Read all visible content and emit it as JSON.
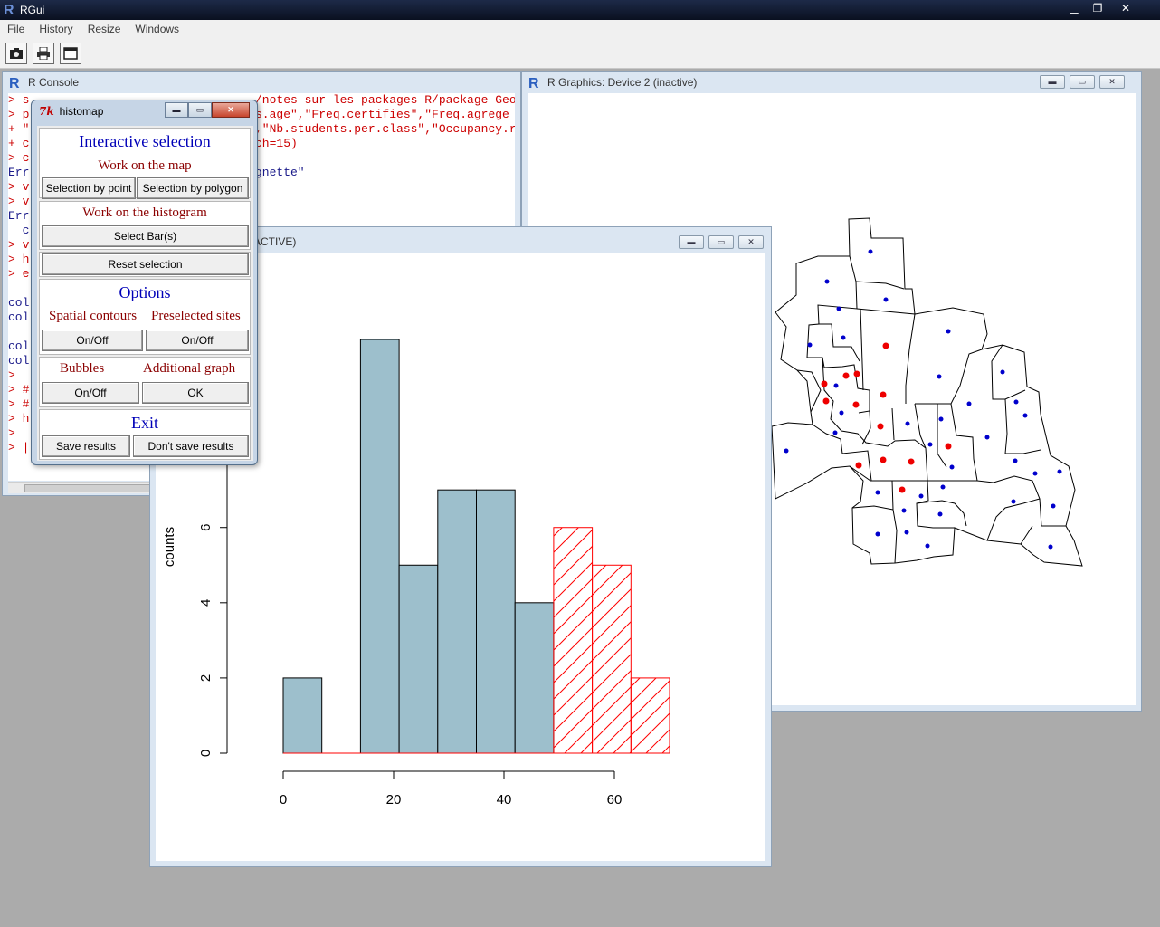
{
  "app": {
    "title": "RGui",
    "menus": [
      "File",
      "History",
      "Resize",
      "Windows"
    ]
  },
  "console": {
    "title": "R Console",
    "lines": [
      {
        "text": "> s",
        "color": "red"
      },
      {
        "text": "> p",
        "color": "red"
      },
      {
        "text": "+ \"",
        "color": "red"
      },
      {
        "text": "+ c",
        "color": "red"
      },
      {
        "text": "> c",
        "color": "red"
      },
      {
        "text": "Err",
        "color": "blue"
      },
      {
        "text": "> v",
        "color": "red"
      },
      {
        "text": "> v",
        "color": "red"
      },
      {
        "text": "Err",
        "color": "blue"
      },
      {
        "text": "  c",
        "color": "blue"
      },
      {
        "text": "> v",
        "color": "red"
      },
      {
        "text": "> h",
        "color": "red"
      },
      {
        "text": "> e",
        "color": "red"
      },
      {
        "text": "",
        "color": "blue"
      },
      {
        "text": "col",
        "color": "blue"
      },
      {
        "text": "col",
        "color": "blue"
      },
      {
        "text": "",
        "color": "blue"
      },
      {
        "text": "col",
        "color": "blue"
      },
      {
        "text": "col",
        "color": "blue"
      },
      {
        "text": ">",
        "color": "red"
      },
      {
        "text": "> #",
        "color": "red"
      },
      {
        "text": "> #",
        "color": "red"
      },
      {
        "text": "> h",
        "color": "red"
      },
      {
        "text": ">",
        "color": "red"
      },
      {
        "text": "> |",
        "color": "red"
      }
    ],
    "right_lines": [
      {
        "row": 0,
        "text": "/notes sur les packages R/package Geo"
      },
      {
        "row": 1,
        "text": "s.age\",\"Freq.certifies\",\"Freq.agrege"
      },
      {
        "row": 2,
        "text": ",\"Nb.students.per.class\",\"Occupancy.r"
      },
      {
        "row": 3,
        "text": "ch=15)"
      },
      {
        "row": 5,
        "text": "gnette\"",
        "color": "blue"
      }
    ]
  },
  "device2": {
    "title": "R Graphics: Device 2 (inactive)"
  },
  "device3": {
    "title": "e 3 (ACTIVE)"
  },
  "histomap": {
    "title": "histomap",
    "interactive_selection": "Interactive selection",
    "work_on_map": "Work on the map",
    "selection_by_point": "Selection by point",
    "selection_by_polygon": "Selection by polygon",
    "work_on_histogram": "Work on the histogram",
    "select_bars": "Select Bar(s)",
    "reset_selection": "Reset selection",
    "options": "Options",
    "spatial_contours": "Spatial contours",
    "preselected_sites": "Preselected sites",
    "onoff_1": "On/Off",
    "onoff_2": "On/Off",
    "bubbles": "Bubbles",
    "additional_graph": "Additional graph",
    "onoff_3": "On/Off",
    "ok": "OK",
    "exit": "Exit",
    "save_results": "Save results",
    "dont_save_results": "Don't save results"
  },
  "chart_data": {
    "type": "bar",
    "ylabel": "counts",
    "xlim": [
      0,
      70
    ],
    "ylim": [
      0,
      10
    ],
    "x_ticks": [
      0,
      20,
      40,
      60
    ],
    "y_ticks": [
      0,
      2,
      4,
      6
    ],
    "bins": [
      {
        "from": 0,
        "to": 7,
        "count": 2,
        "selected": false
      },
      {
        "from": 7,
        "to": 14,
        "count": 0,
        "selected": false
      },
      {
        "from": 14,
        "to": 21,
        "count": 11,
        "selected": false
      },
      {
        "from": 21,
        "to": 28,
        "count": 5,
        "selected": false
      },
      {
        "from": 28,
        "to": 35,
        "count": 7,
        "selected": false
      },
      {
        "from": 35,
        "to": 42,
        "count": 7,
        "selected": false
      },
      {
        "from": 42,
        "to": 49,
        "count": 4,
        "selected": false
      },
      {
        "from": 49,
        "to": 56,
        "count": 6,
        "selected": true
      },
      {
        "from": 56,
        "to": 63,
        "count": 5,
        "selected": true
      },
      {
        "from": 63,
        "to": 70,
        "count": 2,
        "selected": true
      }
    ],
    "colors": {
      "bar_fill": "#9dbfcc",
      "selected_stroke": "#ff0000"
    }
  },
  "map_points": {
    "blue": [
      [
        961,
        277
      ],
      [
        913,
        310
      ],
      [
        978,
        330
      ],
      [
        926,
        340
      ],
      [
        1047,
        365
      ],
      [
        931,
        372
      ],
      [
        894,
        380
      ],
      [
        1037,
        415
      ],
      [
        1107,
        410
      ],
      [
        923,
        425
      ],
      [
        1122,
        443
      ],
      [
        929,
        455
      ],
      [
        1070,
        445
      ],
      [
        1002,
        467
      ],
      [
        1039,
        462
      ],
      [
        1132,
        458
      ],
      [
        1027,
        490
      ],
      [
        1090,
        482
      ],
      [
        922,
        477
      ],
      [
        868,
        497
      ],
      [
        1051,
        515
      ],
      [
        1121,
        508
      ],
      [
        1143,
        522
      ],
      [
        1170,
        520
      ],
      [
        969,
        543
      ],
      [
        1041,
        537
      ],
      [
        1017,
        547
      ],
      [
        998,
        563
      ],
      [
        1038,
        567
      ],
      [
        1119,
        553
      ],
      [
        1163,
        558
      ],
      [
        969,
        589
      ],
      [
        1001,
        587
      ],
      [
        1024,
        602
      ],
      [
        1160,
        603
      ]
    ],
    "red": [
      [
        978,
        381
      ],
      [
        934,
        414
      ],
      [
        946,
        412
      ],
      [
        910,
        423
      ],
      [
        975,
        435
      ],
      [
        912,
        442
      ],
      [
        945,
        446
      ],
      [
        972,
        470
      ],
      [
        1047,
        492
      ],
      [
        948,
        513
      ],
      [
        975,
        507
      ],
      [
        1006,
        509
      ],
      [
        996,
        540
      ]
    ]
  }
}
